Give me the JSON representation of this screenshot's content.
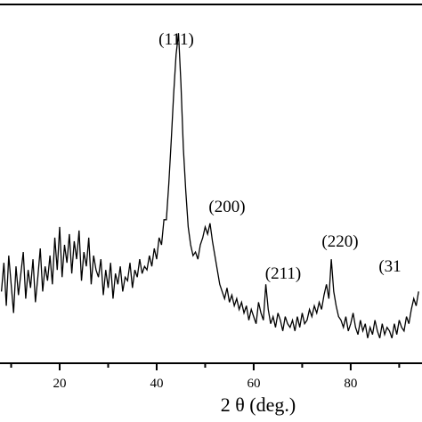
{
  "chart_data": {
    "type": "line",
    "x_label": "2 θ (deg.)",
    "xlim": [
      7.7,
      94.7
    ],
    "ylim": [
      0,
      100
    ],
    "xticks": [
      20,
      40,
      60,
      80
    ],
    "xminor_ticks": [
      10,
      30,
      50,
      70,
      90
    ],
    "annotations": [
      "(111)",
      "(200)",
      "(211)",
      "(220)",
      "(31"
    ],
    "series": [
      {
        "color": "#000000",
        "x": [
          8,
          8.5,
          9,
          9.5,
          10,
          10.5,
          11,
          11.5,
          12,
          12.5,
          13,
          13.5,
          14,
          14.5,
          15,
          15.5,
          16,
          16.5,
          17,
          17.5,
          18,
          18.5,
          19,
          19.5,
          20,
          20.5,
          21,
          21.5,
          22,
          22.5,
          23,
          23.5,
          24,
          24.5,
          25,
          25.5,
          26,
          26.5,
          27,
          27.5,
          28,
          28.5,
          29,
          29.5,
          30,
          30.5,
          31,
          31.5,
          32,
          32.5,
          33,
          33.5,
          34,
          34.5,
          35,
          35.5,
          36,
          36.5,
          37,
          37.5,
          38,
          38.5,
          39,
          39.5,
          40,
          40.5,
          41,
          41.5,
          42,
          42.5,
          43,
          43.5,
          44,
          44.5,
          45,
          45.5,
          46,
          46.5,
          47,
          47.5,
          48,
          48.5,
          49,
          49.5,
          50,
          50.5,
          51,
          51.5,
          52,
          52.5,
          53,
          53.5,
          54,
          54.5,
          55,
          55.5,
          56,
          56.5,
          57,
          57.5,
          58,
          58.5,
          59,
          59.5,
          60,
          60.5,
          61,
          61.5,
          62,
          62.5,
          63,
          63.5,
          64,
          64.5,
          65,
          65.5,
          66,
          66.5,
          67,
          67.5,
          68,
          68.5,
          69,
          69.5,
          70,
          70.5,
          71,
          71.5,
          72,
          72.5,
          73,
          73.5,
          74,
          74.5,
          75,
          75.5,
          76,
          76.5,
          77,
          77.5,
          78,
          78.5,
          79,
          79.5,
          80,
          80.5,
          81,
          81.5,
          82,
          82.5,
          83,
          83.5,
          84,
          84.5,
          85,
          85.5,
          86,
          86.5,
          87,
          87.5,
          88,
          88.5,
          89,
          89.5,
          90,
          90.5,
          91,
          91.5,
          92,
          92.5,
          93,
          93.5,
          94
        ],
        "values": [
          20,
          28,
          16,
          30,
          22,
          14,
          27,
          19,
          25,
          31,
          18,
          26,
          21,
          29,
          17,
          24,
          32,
          20,
          27,
          23,
          30,
          22,
          35,
          26,
          38,
          24,
          33,
          28,
          36,
          25,
          34,
          29,
          37,
          23,
          31,
          27,
          35,
          22,
          30,
          26,
          24,
          29,
          19,
          26,
          21,
          28,
          18,
          25,
          22,
          27,
          20,
          24,
          23,
          28,
          21,
          26,
          24,
          29,
          25,
          27,
          26,
          30,
          27,
          32,
          29,
          35,
          33,
          40,
          40,
          50,
          62,
          75,
          86,
          92,
          78,
          60,
          48,
          38,
          33,
          30,
          31,
          29,
          33,
          35,
          38,
          36,
          39,
          34,
          30,
          26,
          22,
          20,
          18,
          21,
          17,
          19,
          16,
          18,
          15,
          17,
          14,
          16,
          12,
          15,
          13,
          11,
          17,
          14,
          12,
          22,
          15,
          11,
          13,
          10,
          14,
          12,
          9,
          13,
          11,
          10,
          12,
          9,
          13,
          10,
          14,
          11,
          12,
          15,
          13,
          16,
          14,
          17,
          15,
          19,
          22,
          18,
          29,
          20,
          16,
          13,
          12,
          10,
          13,
          9,
          11,
          14,
          10,
          8,
          12,
          9,
          11,
          7,
          10,
          8,
          12,
          9,
          7,
          11,
          8,
          10,
          9,
          7,
          11,
          8,
          12,
          10,
          9,
          13,
          11,
          15,
          18,
          16,
          20
        ]
      }
    ]
  }
}
